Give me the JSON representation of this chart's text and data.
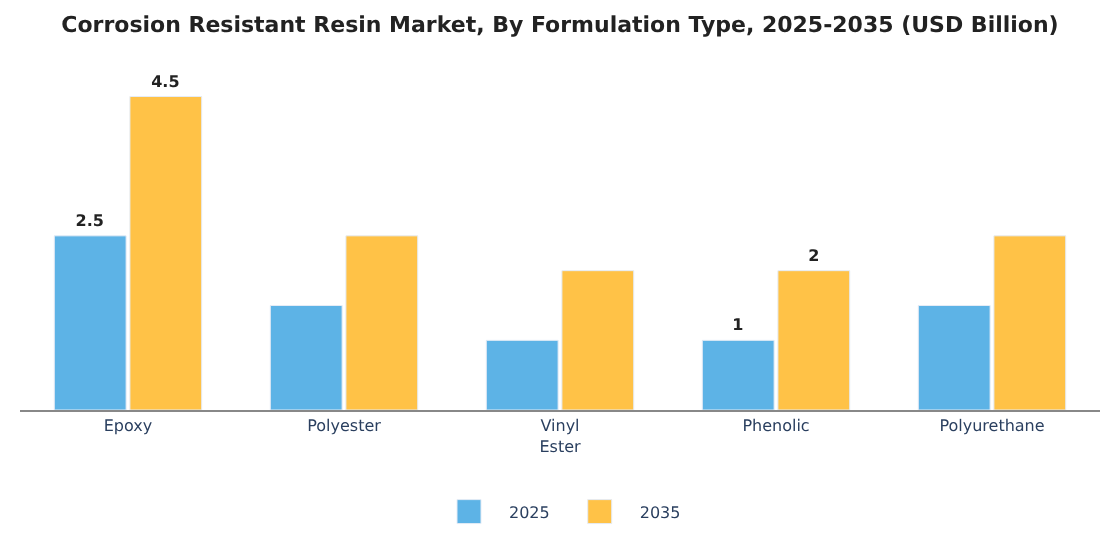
{
  "chart_data": {
    "type": "bar",
    "title": "Corrosion Resistant Resin Market, By Formulation Type, 2025-2035 (USD Billion)",
    "categories": [
      "Epoxy",
      "Polyester",
      "Vinyl Ester",
      "Phenolic",
      "Polyurethane"
    ],
    "series": [
      {
        "name": "2025",
        "color": "#5db3e6",
        "values": [
          2.5,
          1.5,
          1.0,
          1.0,
          1.5
        ],
        "value_labels": [
          "2.5",
          null,
          null,
          "1",
          null
        ]
      },
      {
        "name": "2035",
        "color": "#ffc247",
        "values": [
          4.5,
          2.5,
          2.0,
          2.0,
          2.5
        ],
        "value_labels": [
          "4.5",
          null,
          null,
          "2",
          null
        ]
      }
    ],
    "legend": "bottom"
  }
}
